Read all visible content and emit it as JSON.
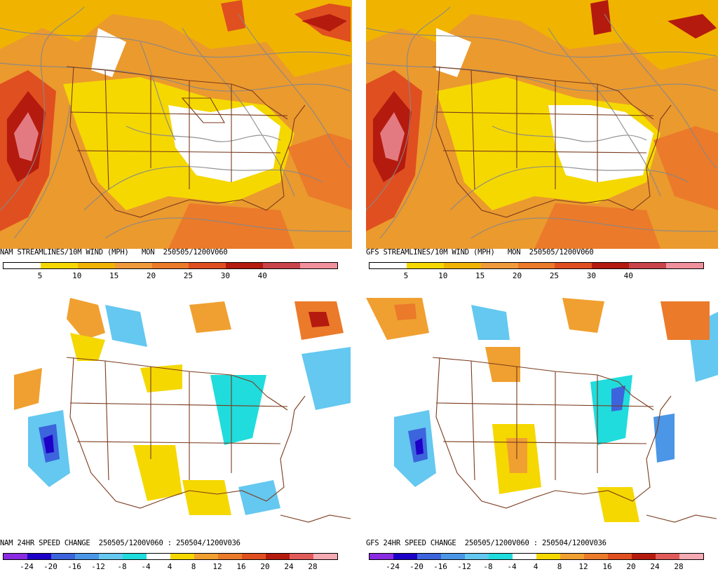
{
  "panels": {
    "nam_wind": {
      "title": "NAM STREAMLINES/10M WIND (MPH)   MON  250505/1200V060",
      "ticks": [
        "5",
        "10",
        "15",
        "20",
        "25",
        "30",
        "40"
      ],
      "colors": [
        "#ffffff",
        "#f5d800",
        "#f0b400",
        "#f09a3c",
        "#eb7a2a",
        "#e04f20",
        "#b51a0e",
        "#c8434a",
        "#f1909d"
      ]
    },
    "gfs_wind": {
      "title": "GFS STREAMLINES/10M WIND (MPH)   MON  250505/1200V060",
      "ticks": [
        "5",
        "10",
        "15",
        "20",
        "25",
        "30",
        "40"
      ],
      "colors": [
        "#ffffff",
        "#f5d800",
        "#f0b400",
        "#f09a3c",
        "#eb7a2a",
        "#e04f20",
        "#b51a0e",
        "#c8434a",
        "#f1909d"
      ]
    },
    "nam_change": {
      "title": "NAM 24HR SPEED CHANGE  250505/1200V060 : 250504/1200V036",
      "ticks": [
        "-24",
        "-20",
        "-16",
        "-12",
        "-8",
        "-4",
        "4",
        "8",
        "12",
        "16",
        "20",
        "24",
        "28"
      ],
      "colors": [
        "#8a2be2",
        "#1d00c8",
        "#3c64dc",
        "#4b96e6",
        "#64c8f0",
        "#20dcdc",
        "#ffffff",
        "#f5d800",
        "#f0a030",
        "#eb7a2a",
        "#e04f20",
        "#b51a0e",
        "#e05a5a",
        "#f5aab4"
      ]
    },
    "gfs_change": {
      "title": "GFS 24HR SPEED CHANGE  250505/1200V060 : 250504/1200V036",
      "ticks": [
        "-24",
        "-20",
        "-16",
        "-12",
        "-8",
        "-4",
        "4",
        "8",
        "12",
        "16",
        "20",
        "24",
        "28"
      ],
      "colors": [
        "#8a2be2",
        "#1d00c8",
        "#3c64dc",
        "#4b96e6",
        "#64c8f0",
        "#20dcdc",
        "#ffffff",
        "#f5d800",
        "#f0a030",
        "#eb7a2a",
        "#e04f20",
        "#b51a0e",
        "#e05a5a",
        "#f5aab4"
      ]
    }
  }
}
